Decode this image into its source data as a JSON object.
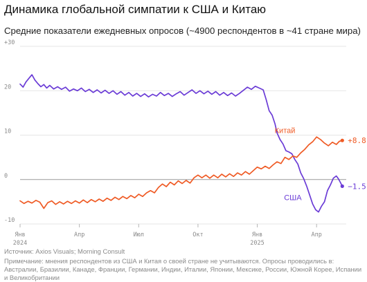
{
  "header": {
    "title": "Динамика глобальной симпатии к США и Китаю",
    "subtitle": "Средние показатели ежедневных опросов (~4900 респондентов в ~41 стране мира)"
  },
  "footer": {
    "source": "Источник: Axios Visuals; Morning Consult",
    "note": "Примечание: мнения респондентов из США и Китая о своей стране не учитываются. Опросы проводились в: Австралии, Бразилии, Канаде, Франции, Германии, Индии, Италии, Японии, Мексике, России, Южной Корее, Испании и Великобритании"
  },
  "colors": {
    "usa": "#6a3bd6",
    "china": "#ef5a24",
    "zero_line": "#9a9a9a",
    "grid": "#e6e6e6",
    "axis_text": "#8a8a8a"
  },
  "chart_data": {
    "type": "line",
    "x_unit": "months since Jan 2024",
    "xlim": [
      0,
      16.5
    ],
    "ylim": [
      -10,
      30
    ],
    "yticks": [
      -10,
      0,
      10,
      20,
      30
    ],
    "ytick_labels": [
      "-10",
      "0",
      "10",
      "20",
      "+30"
    ],
    "xticks": [
      {
        "x": 0,
        "label": "Янв",
        "sub": "2024"
      },
      {
        "x": 3,
        "label": "Апр",
        "sub": ""
      },
      {
        "x": 6,
        "label": "Июл",
        "sub": ""
      },
      {
        "x": 9,
        "label": "Окт",
        "sub": ""
      },
      {
        "x": 12,
        "label": "Янв",
        "sub": "2025"
      },
      {
        "x": 15,
        "label": "Апр",
        "sub": ""
      }
    ],
    "grid": true,
    "series": [
      {
        "name": "США",
        "color": "#6a3bd6",
        "end_value": "−1.5",
        "points": [
          [
            0,
            21.5
          ],
          [
            0.15,
            20.8
          ],
          [
            0.3,
            22.0
          ],
          [
            0.45,
            22.8
          ],
          [
            0.6,
            23.6
          ],
          [
            0.75,
            22.4
          ],
          [
            0.9,
            21.6
          ],
          [
            1.05,
            20.9
          ],
          [
            1.2,
            21.4
          ],
          [
            1.35,
            20.6
          ],
          [
            1.5,
            21.2
          ],
          [
            1.7,
            20.4
          ],
          [
            1.9,
            20.9
          ],
          [
            2.1,
            20.3
          ],
          [
            2.3,
            20.8
          ],
          [
            2.5,
            19.9
          ],
          [
            2.7,
            20.4
          ],
          [
            2.9,
            20.0
          ],
          [
            3.1,
            20.6
          ],
          [
            3.3,
            19.8
          ],
          [
            3.5,
            20.3
          ],
          [
            3.7,
            19.6
          ],
          [
            3.9,
            20.2
          ],
          [
            4.1,
            19.5
          ],
          [
            4.3,
            20.1
          ],
          [
            4.5,
            19.4
          ],
          [
            4.7,
            20.0
          ],
          [
            4.9,
            19.2
          ],
          [
            5.1,
            19.8
          ],
          [
            5.3,
            19.0
          ],
          [
            5.5,
            19.6
          ],
          [
            5.7,
            18.8
          ],
          [
            5.9,
            19.4
          ],
          [
            6.1,
            18.7
          ],
          [
            6.3,
            19.3
          ],
          [
            6.5,
            18.6
          ],
          [
            6.7,
            19.2
          ],
          [
            6.9,
            18.8
          ],
          [
            7.1,
            19.6
          ],
          [
            7.3,
            18.9
          ],
          [
            7.5,
            19.4
          ],
          [
            7.7,
            18.7
          ],
          [
            7.9,
            19.3
          ],
          [
            8.1,
            19.8
          ],
          [
            8.3,
            19.0
          ],
          [
            8.5,
            19.6
          ],
          [
            8.7,
            20.2
          ],
          [
            8.9,
            19.4
          ],
          [
            9.1,
            20.0
          ],
          [
            9.3,
            19.3
          ],
          [
            9.5,
            19.9
          ],
          [
            9.7,
            19.2
          ],
          [
            9.9,
            19.8
          ],
          [
            10.1,
            19.0
          ],
          [
            10.3,
            19.6
          ],
          [
            10.5,
            18.9
          ],
          [
            10.7,
            19.5
          ],
          [
            10.9,
            18.8
          ],
          [
            11.1,
            19.4
          ],
          [
            11.3,
            20.1
          ],
          [
            11.5,
            20.8
          ],
          [
            11.7,
            20.3
          ],
          [
            11.9,
            21.0
          ],
          [
            12.1,
            20.6
          ],
          [
            12.3,
            20.2
          ],
          [
            12.45,
            18.0
          ],
          [
            12.6,
            15.5
          ],
          [
            12.75,
            14.5
          ],
          [
            12.9,
            12.5
          ],
          [
            13.0,
            10.5
          ],
          [
            13.15,
            9.0
          ],
          [
            13.3,
            8.0
          ],
          [
            13.45,
            6.5
          ],
          [
            13.6,
            6.2
          ],
          [
            13.75,
            5.8
          ],
          [
            13.9,
            4.5
          ],
          [
            14.05,
            3.5
          ],
          [
            14.2,
            1.5
          ],
          [
            14.35,
            0.2
          ],
          [
            14.5,
            -1.5
          ],
          [
            14.65,
            -3.5
          ],
          [
            14.8,
            -5.5
          ],
          [
            14.95,
            -6.8
          ],
          [
            15.1,
            -7.3
          ],
          [
            15.25,
            -6.0
          ],
          [
            15.4,
            -5.0
          ],
          [
            15.55,
            -2.5
          ],
          [
            15.7,
            -1.2
          ],
          [
            15.85,
            0.3
          ],
          [
            16.0,
            0.8
          ],
          [
            16.1,
            0.2
          ],
          [
            16.2,
            -0.6
          ],
          [
            16.3,
            -1.5
          ]
        ]
      },
      {
        "name": "Китай",
        "color": "#ef5a24",
        "end_value": "+8.8",
        "points": [
          [
            0,
            -4.8
          ],
          [
            0.2,
            -5.4
          ],
          [
            0.4,
            -4.9
          ],
          [
            0.6,
            -5.3
          ],
          [
            0.8,
            -4.7
          ],
          [
            1.0,
            -5.1
          ],
          [
            1.2,
            -6.5
          ],
          [
            1.4,
            -5.2
          ],
          [
            1.6,
            -4.8
          ],
          [
            1.8,
            -5.6
          ],
          [
            2.0,
            -5.0
          ],
          [
            2.2,
            -5.5
          ],
          [
            2.4,
            -4.9
          ],
          [
            2.6,
            -5.4
          ],
          [
            2.8,
            -4.8
          ],
          [
            3.0,
            -5.3
          ],
          [
            3.2,
            -4.6
          ],
          [
            3.4,
            -5.2
          ],
          [
            3.6,
            -4.5
          ],
          [
            3.8,
            -5.0
          ],
          [
            4.0,
            -4.4
          ],
          [
            4.2,
            -4.9
          ],
          [
            4.4,
            -4.2
          ],
          [
            4.6,
            -4.7
          ],
          [
            4.8,
            -4.0
          ],
          [
            5.0,
            -4.5
          ],
          [
            5.2,
            -3.8
          ],
          [
            5.4,
            -4.3
          ],
          [
            5.6,
            -3.6
          ],
          [
            5.8,
            -4.1
          ],
          [
            6.0,
            -3.3
          ],
          [
            6.2,
            -3.8
          ],
          [
            6.4,
            -3.0
          ],
          [
            6.6,
            -2.5
          ],
          [
            6.8,
            -3.0
          ],
          [
            7.0,
            -1.8
          ],
          [
            7.2,
            -1.0
          ],
          [
            7.4,
            -1.6
          ],
          [
            7.6,
            -0.6
          ],
          [
            7.8,
            -1.2
          ],
          [
            8.0,
            -0.3
          ],
          [
            8.2,
            -0.9
          ],
          [
            8.4,
            -0.2
          ],
          [
            8.6,
            -0.8
          ],
          [
            8.8,
            0.4
          ],
          [
            9.0,
            1.0
          ],
          [
            9.2,
            0.4
          ],
          [
            9.4,
            1.0
          ],
          [
            9.6,
            0.3
          ],
          [
            9.8,
            1.0
          ],
          [
            10.0,
            0.4
          ],
          [
            10.2,
            1.2
          ],
          [
            10.4,
            0.6
          ],
          [
            10.6,
            1.3
          ],
          [
            10.8,
            0.7
          ],
          [
            11.0,
            1.5
          ],
          [
            11.2,
            1.0
          ],
          [
            11.4,
            1.8
          ],
          [
            11.6,
            1.2
          ],
          [
            11.8,
            2.0
          ],
          [
            12.0,
            2.8
          ],
          [
            12.2,
            2.4
          ],
          [
            12.4,
            3.0
          ],
          [
            12.6,
            2.5
          ],
          [
            12.8,
            3.3
          ],
          [
            13.0,
            4.0
          ],
          [
            13.2,
            3.6
          ],
          [
            13.4,
            5.0
          ],
          [
            13.6,
            4.5
          ],
          [
            13.8,
            5.3
          ],
          [
            14.0,
            5.0
          ],
          [
            14.2,
            6.0
          ],
          [
            14.4,
            6.8
          ],
          [
            14.6,
            7.8
          ],
          [
            14.8,
            8.5
          ],
          [
            15.0,
            9.6
          ],
          [
            15.2,
            9.0
          ],
          [
            15.4,
            8.2
          ],
          [
            15.6,
            7.6
          ],
          [
            15.8,
            8.4
          ],
          [
            16.0,
            7.9
          ],
          [
            16.15,
            8.6
          ],
          [
            16.3,
            8.8
          ]
        ]
      }
    ]
  }
}
